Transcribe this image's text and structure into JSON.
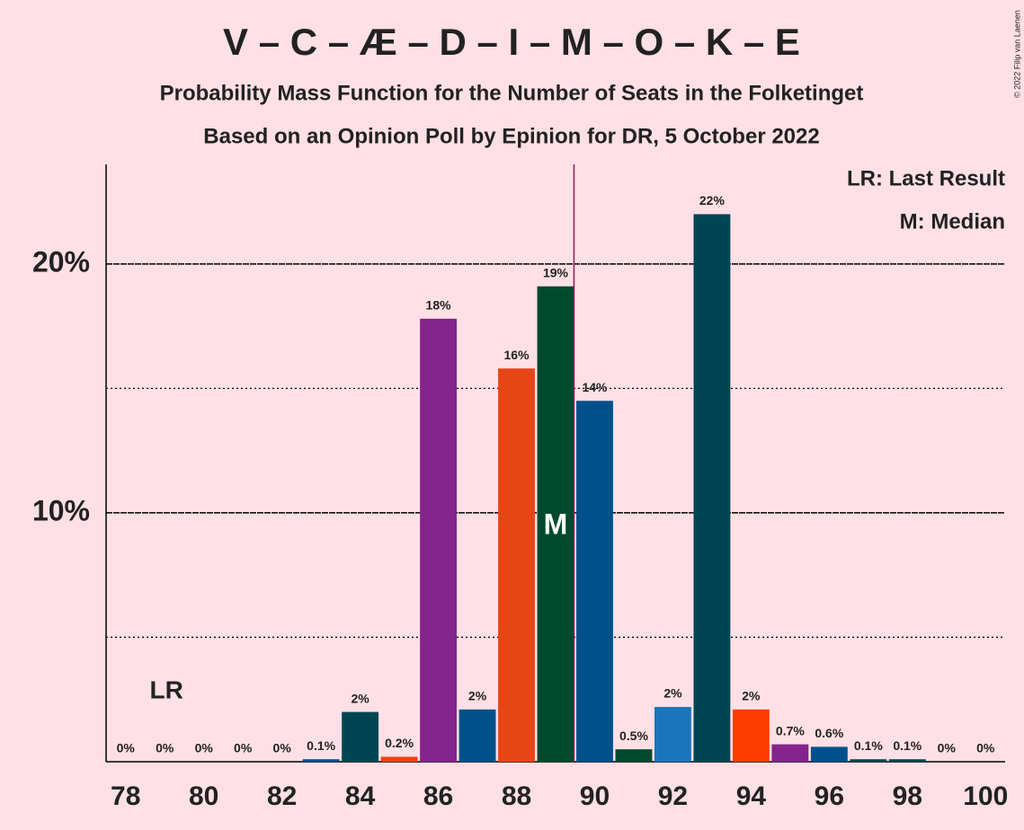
{
  "chart_data": {
    "type": "bar",
    "title": "V – C – Æ – D – I – M – O – K – E",
    "subtitle": "Probability Mass Function for the Number of Seats in the Folketinget",
    "subtitle2": "Based on an Opinion Poll by Epinion for DR, 5 October 2022",
    "copyright": "© 2022 Filip van Laenen",
    "legend_lr": "LR: Last Result",
    "legend_median": "M: Median",
    "lr_label": "LR",
    "median_label": "M",
    "last_result_index": 1,
    "median_index": 11,
    "categories": [
      "78",
      null,
      "80",
      null,
      "82",
      null,
      "84",
      null,
      "86",
      null,
      "88",
      null,
      "90",
      null,
      "92",
      null,
      "94",
      null,
      "96",
      null,
      "98",
      null,
      "100"
    ],
    "values": [
      0,
      0,
      0,
      0,
      0,
      0.1,
      2.0,
      0.2,
      17.8,
      2.1,
      15.8,
      19.1,
      14.5,
      0.5,
      2.2,
      22.0,
      2.1,
      0.7,
      0.6,
      0.1,
      0.1,
      0,
      0
    ],
    "value_labels": [
      "0%",
      "0%",
      "0%",
      "0%",
      "0%",
      "0.1%",
      "2%",
      "0.2%",
      "18%",
      "2%",
      "16%",
      "19%",
      "14%",
      "0.5%",
      "2%",
      "22%",
      "2%",
      "0.7%",
      "0.6%",
      "0.1%",
      "0.1%",
      "0%",
      "0%"
    ],
    "colors": [
      "#00508c",
      "#00508c",
      "#00508c",
      "#00508c",
      "#00508c",
      "#00508c",
      "#004652",
      "#e84514",
      "#84248c",
      "#00508c",
      "#e84514",
      "#004b2d",
      "#00508c",
      "#004b2d",
      "#1b75bb",
      "#004652",
      "#ff3c00",
      "#84248c",
      "#00508c",
      "#004652",
      "#004652",
      "#00508c",
      "#00508c"
    ],
    "ylim": [
      0,
      24
    ],
    "yticks": [
      {
        "value": 10,
        "label": "10%"
      },
      {
        "value": 20,
        "label": "20%"
      }
    ],
    "minor_yticks": [
      5,
      15
    ],
    "grid": true
  }
}
